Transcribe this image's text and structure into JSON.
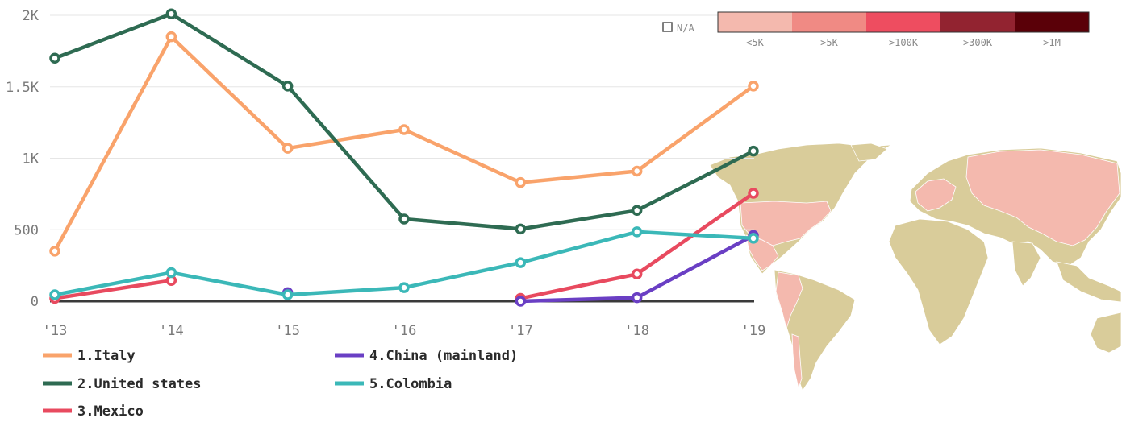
{
  "chart_data": {
    "type": "line",
    "categories": [
      "'13",
      "'14",
      "'15",
      "'16",
      "'17",
      "'18",
      "'19"
    ],
    "y_tick_labels": [
      "0",
      "500",
      "1K",
      "1.5K",
      "2K"
    ],
    "y_tick_values": [
      0,
      500,
      1000,
      1500,
      2000
    ],
    "ylim": [
      0,
      2000
    ],
    "grid": true,
    "legend_placement": "bottom-left",
    "series": [
      {
        "name": "1.Italy",
        "color": "#F9A36B",
        "values": [
          350,
          1850,
          1070,
          1200,
          830,
          910,
          1505
        ]
      },
      {
        "name": "2.United states",
        "color": "#2E6B52",
        "values": [
          1700,
          2010,
          1505,
          575,
          505,
          635,
          1050
        ]
      },
      {
        "name": "3.Mexico",
        "color": "#E84A5F",
        "values": [
          20,
          145,
          null,
          null,
          20,
          190,
          755
        ]
      },
      {
        "name": "4.China (mainland)",
        "color": "#6A3FC4",
        "values": [
          null,
          null,
          60,
          null,
          0,
          25,
          460
        ]
      },
      {
        "name": "5.Colombia",
        "color": "#3BB8B8",
        "values": [
          45,
          200,
          45,
          95,
          270,
          485,
          440
        ]
      }
    ]
  },
  "map_scale": {
    "na_label": "N/A",
    "bins": [
      {
        "label": "<5K",
        "color": "#F4B9AE"
      },
      {
        "label": ">5K",
        "color": "#F08A84"
      },
      {
        "label": ">100K",
        "color": "#EE4D60"
      },
      {
        "label": ">300K",
        "color": "#922330"
      },
      {
        "label": ">1M",
        "color": "#5A0008"
      }
    ]
  },
  "map": {
    "land_color": "#D9CC9A",
    "highlight_color": "#F4B9AE"
  }
}
